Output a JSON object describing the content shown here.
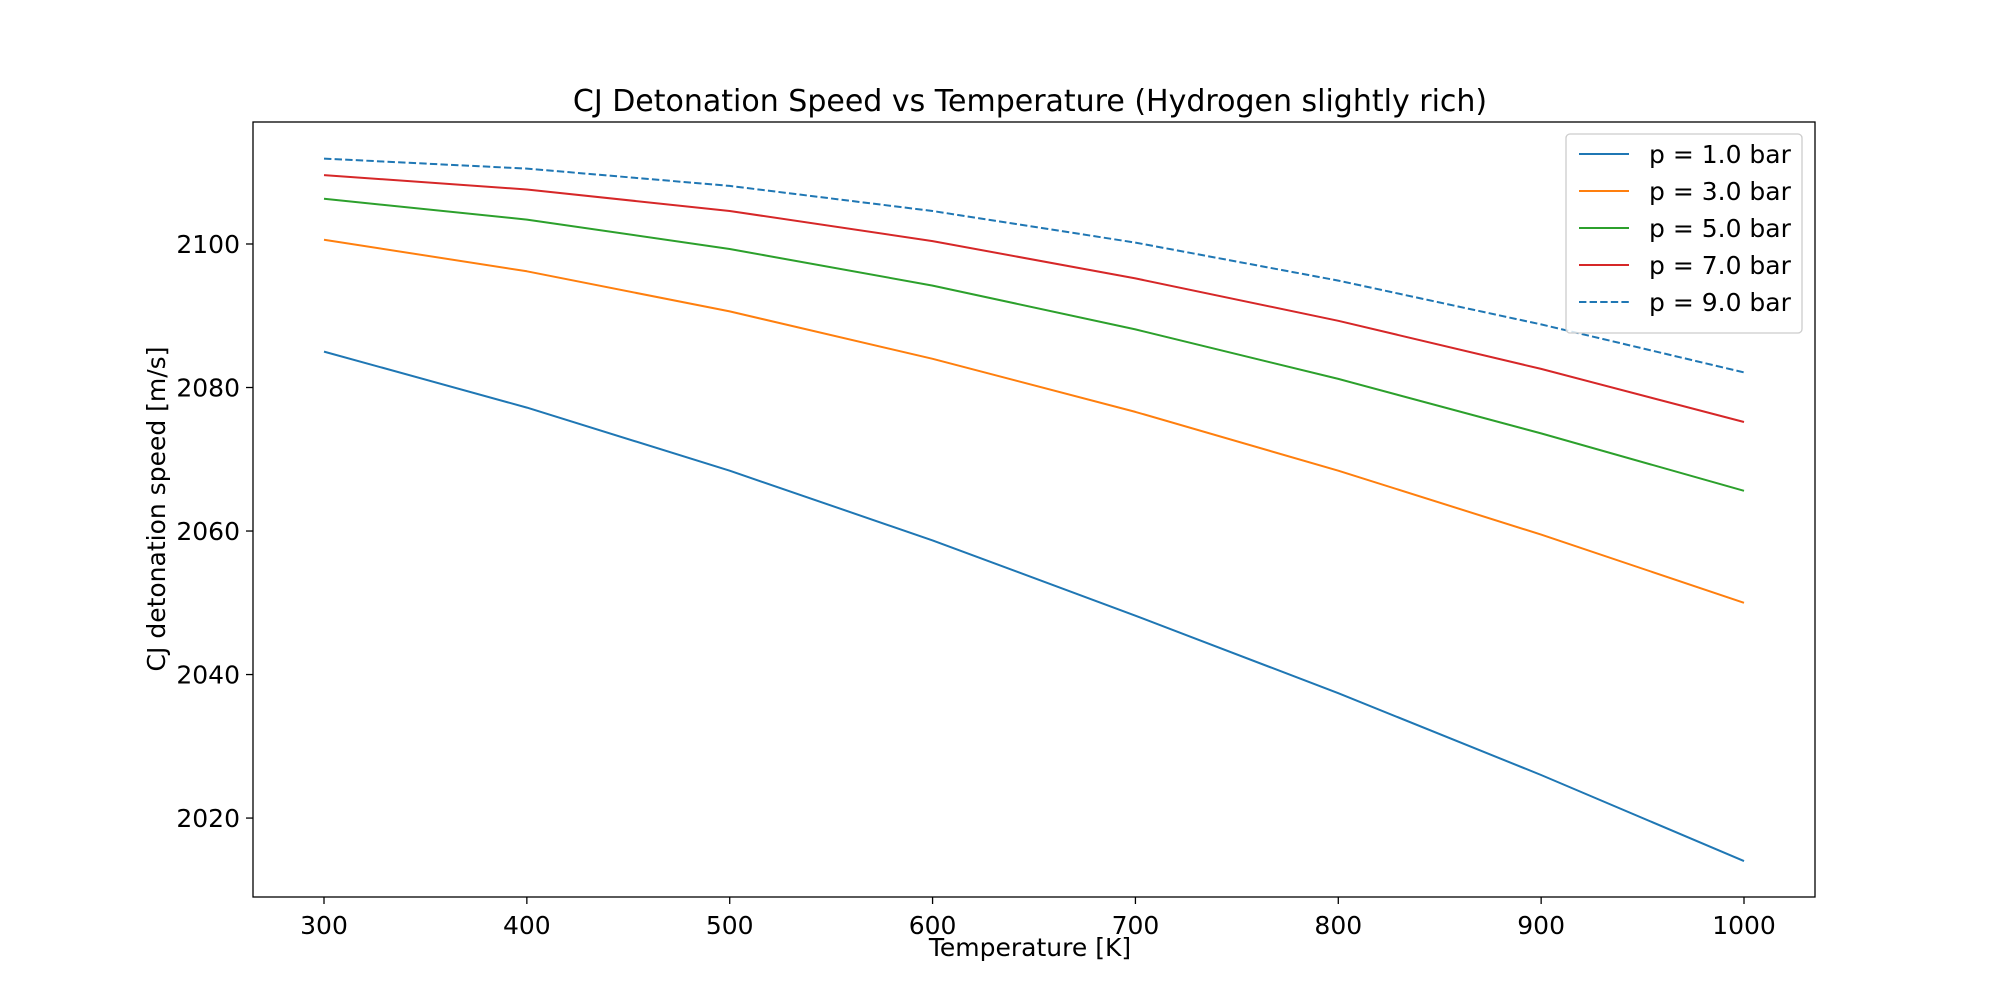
{
  "chart_data": {
    "type": "line",
    "title": "CJ Detonation Speed vs Temperature (Hydrogen slightly rich)",
    "xlabel": "Temperature [K]",
    "ylabel": "CJ detonation speed [m/s]",
    "x": [
      300,
      400,
      500,
      600,
      700,
      800,
      900,
      1000
    ],
    "xlim": [
      265,
      1035
    ],
    "ylim": [
      2009,
      2117
    ],
    "xticks": [
      300,
      400,
      500,
      600,
      700,
      800,
      900,
      1000
    ],
    "yticks": [
      2020,
      2040,
      2060,
      2080,
      2100
    ],
    "grid": false,
    "legend_position": "top-right",
    "series": [
      {
        "name": "p = 1.0 bar",
        "color": "#1f77b4",
        "dash": "solid",
        "values": [
          2085.0,
          2077.2,
          2068.4,
          2058.7,
          2048.2,
          2037.4,
          2026.0,
          2014.0
        ]
      },
      {
        "name": "p = 3.0 bar",
        "color": "#ff7f0e",
        "dash": "solid",
        "values": [
          2100.6,
          2096.2,
          2090.6,
          2084.0,
          2076.6,
          2068.4,
          2059.5,
          2050.0
        ]
      },
      {
        "name": "p = 5.0 bar",
        "color": "#2ca02c",
        "dash": "solid",
        "values": [
          2106.3,
          2103.4,
          2099.3,
          2094.2,
          2088.1,
          2081.2,
          2073.6,
          2065.6
        ]
      },
      {
        "name": "p = 7.0 bar",
        "color": "#d62728",
        "dash": "solid",
        "values": [
          2109.6,
          2107.6,
          2104.6,
          2100.4,
          2095.2,
          2089.3,
          2082.6,
          2075.2
        ]
      },
      {
        "name": "p = 9.0 bar",
        "color": "#1f77b4",
        "dash": "dashed",
        "values": [
          2111.9,
          2110.5,
          2108.1,
          2104.6,
          2100.2,
          2094.9,
          2088.8,
          2082.1
        ]
      }
    ]
  }
}
